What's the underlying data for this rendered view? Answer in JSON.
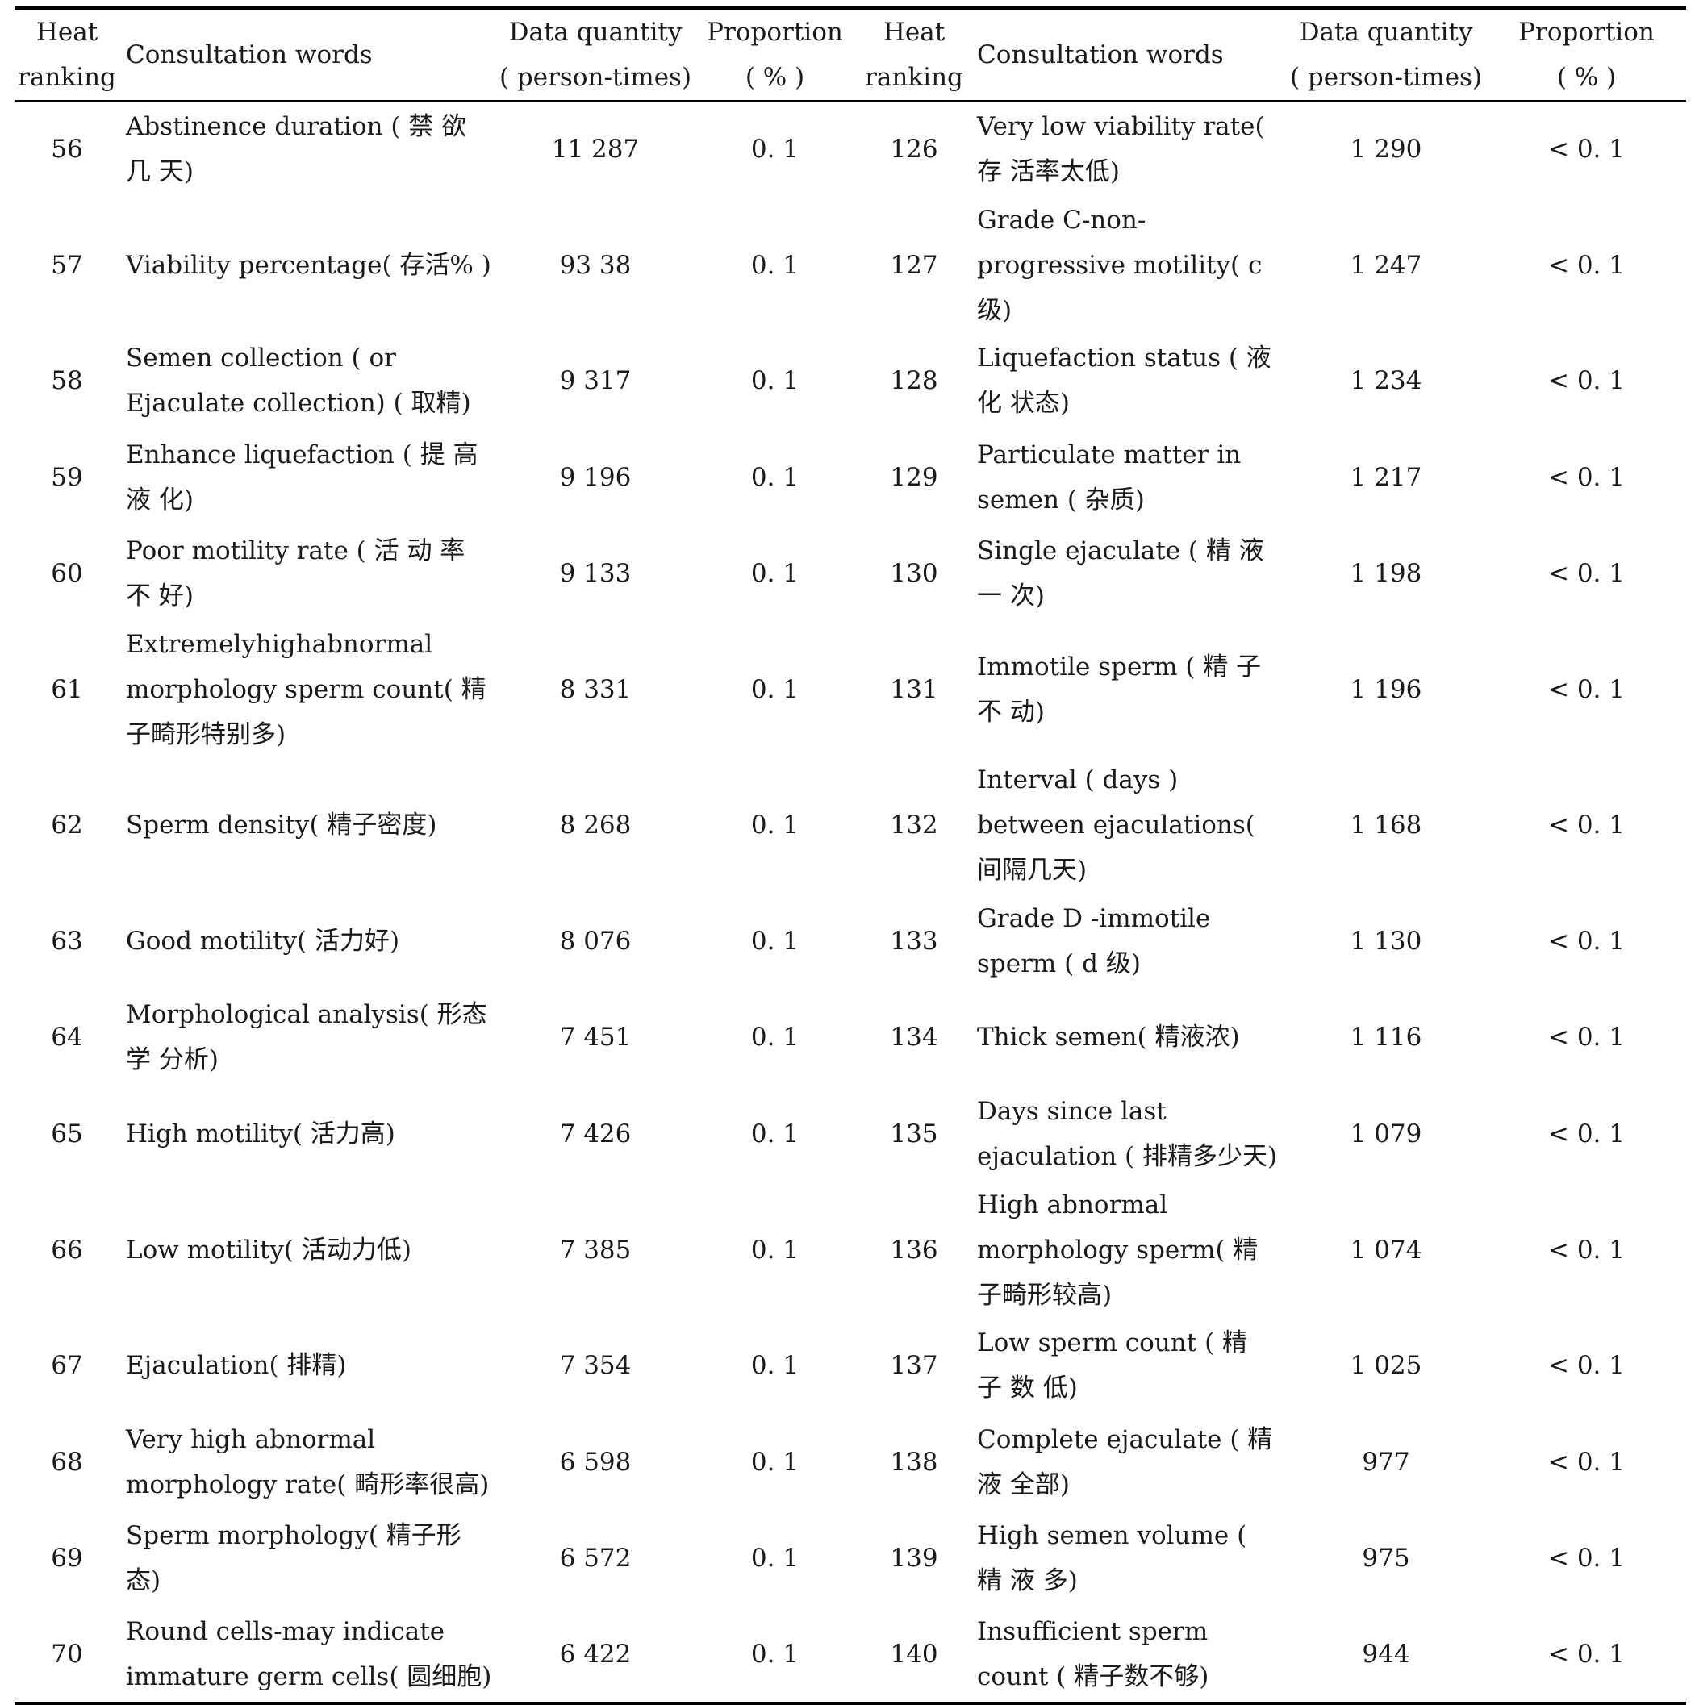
{
  "header": {
    "heat_ranking": "Heat ranking",
    "consultation_words": "Consultation words",
    "data_quantity": "Data quantity",
    "data_quantity_unit": "( person-times)",
    "proportion": "Proportion",
    "proportion_unit": "( % )"
  },
  "rows": [
    {
      "rank1": "56",
      "word1": "Abstinence duration ( 禁 欲 几 天)",
      "qty1": "11 287",
      "prop1": "0. 1",
      "rank2": "126",
      "word2": "Very low viability rate( 存 活率太低)",
      "qty2": "1 290",
      "prop2": "< 0. 1"
    },
    {
      "rank1": "57",
      "word1": "Viability percentage( 存活% )",
      "qty1": "93 38",
      "prop1": "0. 1",
      "rank2": "127",
      "word2": "Grade C-non-progressive motility( c 级)",
      "qty2": "1 247",
      "prop2": "< 0. 1"
    },
    {
      "rank1": "58",
      "word1": "Semen collection ( or Ejaculate collection) ( 取精)",
      "qty1": "9 317",
      "prop1": "0. 1",
      "rank2": "128",
      "word2": "Liquefaction status ( 液 化 状态)",
      "qty2": "1 234",
      "prop2": "< 0. 1"
    },
    {
      "rank1": "59",
      "word1": "Enhance liquefaction ( 提 高 液 化)",
      "qty1": "9 196",
      "prop1": "0. 1",
      "rank2": "129",
      "word2": "Particulate matter in semen ( 杂质)",
      "qty2": "1 217",
      "prop2": "< 0. 1"
    },
    {
      "rank1": "60",
      "word1": "Poor motility rate ( 活 动 率 不 好)",
      "qty1": "9 133",
      "prop1": "0. 1",
      "rank2": "130",
      "word2": "Single ejaculate ( 精 液 一 次)",
      "qty2": "1 198",
      "prop2": "< 0. 1"
    },
    {
      "rank1": "61",
      "word1": "Extremelyhighabnormal morphology sperm count( 精子畸形特别多)",
      "qty1": "8 331",
      "prop1": "0. 1",
      "rank2": "131",
      "word2": "Immotile sperm ( 精 子 不 动)",
      "qty2": "1 196",
      "prop2": "< 0. 1"
    },
    {
      "rank1": "62",
      "word1": "Sperm density( 精子密度)",
      "qty1": "8 268",
      "prop1": "0. 1",
      "rank2": "132",
      "word2": "Interval ( days ) between ejaculations( 间隔几天)",
      "qty2": "1 168",
      "prop2": "< 0. 1"
    },
    {
      "rank1": "63",
      "word1": "Good motility( 活力好)",
      "qty1": "8 076",
      "prop1": "0. 1",
      "rank2": "133",
      "word2": "Grade D -immotile sperm ( d 级)",
      "qty2": "1 130",
      "prop2": "< 0. 1"
    },
    {
      "rank1": "64",
      "word1": "Morphological analysis( 形态学 分析)",
      "qty1": "7 451",
      "prop1": "0. 1",
      "rank2": "134",
      "word2": "Thick semen( 精液浓)",
      "qty2": "1 116",
      "prop2": "< 0. 1"
    },
    {
      "rank1": "65",
      "word1": "High motility( 活力高)",
      "qty1": "7 426",
      "prop1": "0. 1",
      "rank2": "135",
      "word2": "Days since last ejaculation ( 排精多少天)",
      "qty2": "1 079",
      "prop2": "< 0. 1"
    },
    {
      "rank1": "66",
      "word1": "Low motility( 活动力低)",
      "qty1": "7 385",
      "prop1": "0. 1",
      "rank2": "136",
      "word2": "High abnormal morphology sperm( 精子畸形较高)",
      "qty2": "1 074",
      "prop2": "< 0. 1"
    },
    {
      "rank1": "67",
      "word1": "Ejaculation( 排精)",
      "qty1": "7 354",
      "prop1": "0. 1",
      "rank2": "137",
      "word2": "Low sperm count ( 精 子 数 低)",
      "qty2": "1 025",
      "prop2": "< 0. 1"
    },
    {
      "rank1": "68",
      "word1": "Very high abnormal morphology rate( 畸形率很高)",
      "qty1": "6 598",
      "prop1": "0. 1",
      "rank2": "138",
      "word2": "Complete ejaculate ( 精 液 全部)",
      "qty2": "977",
      "prop2": "< 0. 1"
    },
    {
      "rank1": "69",
      "word1": "Sperm morphology( 精子形态)",
      "qty1": "6 572",
      "prop1": "0. 1",
      "rank2": "139",
      "word2": "High semen volume ( 精 液 多)",
      "qty2": "975",
      "prop2": "< 0. 1"
    },
    {
      "rank1": "70",
      "word1": "Round cells-may indicate immature germ cells( 圆细胞)",
      "qty1": "6 422",
      "prop1": "0. 1",
      "rank2": "140",
      "word2": "Insufficient sperm count ( 精子数不够)",
      "qty2": "944",
      "prop2": "< 0. 1"
    }
  ]
}
